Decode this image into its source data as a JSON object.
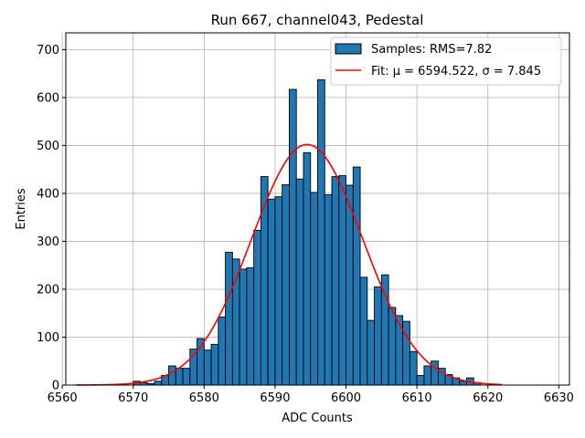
{
  "chart_data": {
    "type": "bar",
    "title": "Run 667, channel043, Pedestal",
    "xlabel": "ADC Counts",
    "ylabel": "Entries",
    "xlim": [
      6560.5,
      6631.5
    ],
    "ylim": [
      0,
      735
    ],
    "xticks": [
      6560,
      6570,
      6580,
      6590,
      6600,
      6610,
      6620,
      6630
    ],
    "yticks": [
      0,
      100,
      200,
      300,
      400,
      500,
      600,
      700
    ],
    "grid": true,
    "legend_position": "top-right",
    "histogram": {
      "name": "Samples: RMS=7.82",
      "color": "#1f77b4",
      "edge_color": "#000000",
      "bin_width": 1,
      "bin_left_edges": [
        6570,
        6571,
        6572,
        6573,
        6574,
        6575,
        6576,
        6577,
        6578,
        6579,
        6580,
        6581,
        6582,
        6583,
        6584,
        6585,
        6586,
        6587,
        6588,
        6589,
        6590,
        6591,
        6592,
        6593,
        6594,
        6595,
        6596,
        6597,
        6598,
        6599,
        6600,
        6601,
        6602,
        6603,
        6604,
        6605,
        6606,
        6607,
        6608,
        6609,
        6610,
        6611,
        6612,
        6613,
        6614,
        6615,
        6616,
        6617,
        6618
      ],
      "values": [
        8,
        5,
        3,
        8,
        20,
        40,
        35,
        35,
        75,
        97,
        73,
        85,
        142,
        277,
        263,
        242,
        245,
        323,
        435,
        388,
        393,
        418,
        617,
        430,
        485,
        402,
        637,
        397,
        435,
        437,
        417,
        455,
        225,
        135,
        205,
        230,
        162,
        145,
        133,
        70,
        20,
        40,
        50,
        35,
        22,
        15,
        8,
        15,
        5
      ]
    },
    "fit": {
      "name": "Fit: μ = 6594.522, σ = 7.845",
      "color": "#ff0000",
      "mu": 6594.522,
      "sigma": 7.845,
      "amplitude": 502,
      "x_range": [
        6562,
        6622
      ]
    }
  }
}
